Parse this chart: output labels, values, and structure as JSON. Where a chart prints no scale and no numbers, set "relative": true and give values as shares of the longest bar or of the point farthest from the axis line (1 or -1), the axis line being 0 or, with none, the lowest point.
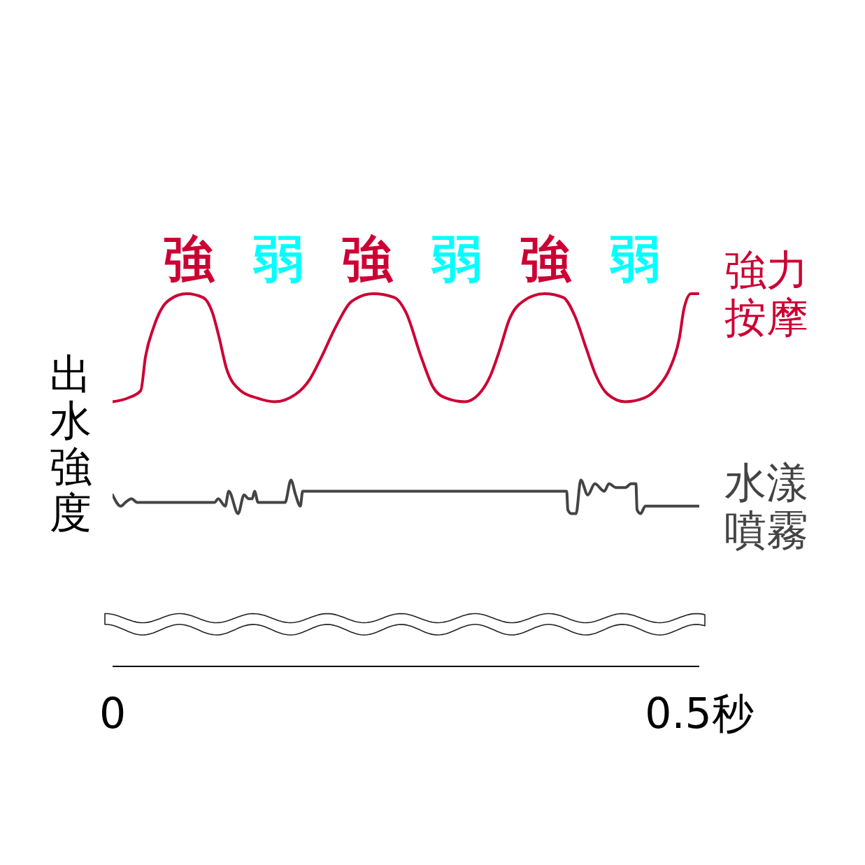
{
  "chart_data": {
    "type": "line",
    "ylabel": "出水強度",
    "relative": true,
    "xlim": [
      0,
      0.5
    ],
    "xticks": [
      0,
      {
        "value": 0.5,
        "label": "0.5秒"
      }
    ],
    "annotations": [
      "強",
      "弱",
      "強",
      "弱",
      "強",
      "弱"
    ],
    "series": [
      {
        "name": "強力按摩",
        "color": "#cc0033",
        "x": [
          0,
          0.013,
          0.024,
          0.028,
          0.035,
          0.047,
          0.063,
          0.077,
          0.085,
          0.091,
          0.097,
          0.109,
          0.123,
          0.138,
          0.156,
          0.168,
          0.178,
          0.19,
          0.204,
          0.222,
          0.24,
          0.25,
          0.263,
          0.273,
          0.284,
          0.3,
          0.312,
          0.322,
          0.33,
          0.338,
          0.35,
          0.368,
          0.384,
          0.394,
          0.404,
          0.412,
          0.422,
          0.437,
          0.453,
          0.465,
          0.475,
          0.483,
          0.487,
          0.493,
          0.499
        ],
        "values": [
          0.71,
          0.72,
          0.74,
          0.83,
          0.91,
          0.98,
          1,
          0.99,
          0.95,
          0.88,
          0.8,
          0.74,
          0.72,
          0.71,
          0.73,
          0.77,
          0.83,
          0.91,
          0.98,
          1,
          0.99,
          0.95,
          0.83,
          0.75,
          0.72,
          0.71,
          0.73,
          0.78,
          0.85,
          0.93,
          0.98,
          1,
          0.99,
          0.94,
          0.85,
          0.78,
          0.73,
          0.71,
          0.72,
          0.75,
          0.8,
          0.88,
          0.96,
          1,
          1
        ]
      },
      {
        "name": "水漾噴霧",
        "color": "#444444",
        "x": [
          0,
          0.007,
          0.011,
          0.016,
          0.021,
          0.087,
          0.09,
          0.096,
          0.099,
          0.107,
          0.112,
          0.116,
          0.119,
          0.121,
          0.124,
          0.141,
          0.147,
          0.152,
          0.156,
          0.16,
          0.162,
          0.387,
          0.388,
          0.391,
          0.395,
          0.399,
          0.405,
          0.411,
          0.419,
          0.423,
          0.429,
          0.437,
          0.442,
          0.446,
          0.447,
          0.45,
          0.454,
          0.5
        ],
        "values": [
          0.46,
          0.43,
          0.44,
          0.45,
          0.44,
          0.44,
          0.45,
          0.43,
          0.47,
          0.41,
          0.46,
          0.45,
          0.45,
          0.47,
          0.44,
          0.44,
          0.44,
          0.5,
          0.46,
          0.43,
          0.47,
          0.47,
          0.42,
          0.41,
          0.41,
          0.5,
          0.46,
          0.49,
          0.47,
          0.49,
          0.48,
          0.48,
          0.49,
          0.49,
          0.42,
          0.41,
          0.43,
          0.43
        ]
      }
    ]
  }
}
